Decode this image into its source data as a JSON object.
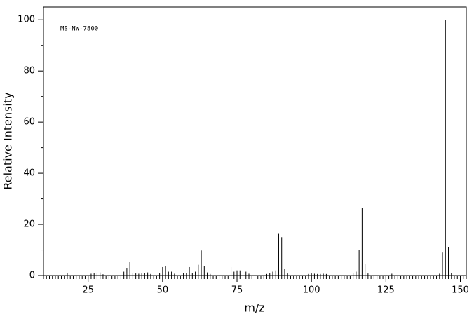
{
  "chart_data": {
    "type": "stem",
    "annotation": "MS-NW-7800",
    "x_label": "m/z",
    "y_label": "Relative Intensity",
    "x": [
      18,
      26,
      27,
      28,
      29,
      30,
      37,
      38,
      39,
      40,
      41,
      42,
      43,
      44,
      45,
      46,
      49,
      50,
      51,
      52,
      53,
      54,
      57,
      58,
      59,
      60,
      61,
      62,
      63,
      64,
      65,
      66,
      73,
      74,
      75,
      76,
      77,
      78,
      79,
      85,
      86,
      87,
      88,
      89,
      90,
      91,
      92,
      99,
      100,
      101,
      102,
      103,
      104,
      105,
      114,
      115,
      116,
      117,
      118,
      119,
      127,
      143,
      144,
      145,
      146,
      147
    ],
    "values": [
      1,
      0.7,
      1,
      1,
      1.2,
      0.5,
      1.5,
      3,
      5.3,
      0.8,
      0.8,
      0.7,
      0.8,
      0.9,
      1.2,
      0.6,
      1,
      3.3,
      3.8,
      1.5,
      1.5,
      0.7,
      1,
      1,
      3.3,
      1,
      1.5,
      4.2,
      9.8,
      3.8,
      1.2,
      0.6,
      3.3,
      1.5,
      2,
      2,
      1.5,
      1.5,
      0.7,
      0.6,
      1,
      1.5,
      2,
      16.3,
      15,
      2.5,
      0.8,
      0.6,
      0.8,
      0.7,
      0.6,
      0.6,
      0.7,
      0.6,
      0.8,
      1.5,
      10,
      26.5,
      4.5,
      0.8,
      0.7,
      0.7,
      9,
      100,
      11,
      1
    ],
    "color": "#000000",
    "xlim": [
      10,
      152
    ],
    "xticks": [
      25,
      50,
      75,
      100,
      125,
      150
    ],
    "ylim": [
      0,
      105
    ],
    "yticks": [
      0,
      20,
      40,
      60,
      80,
      100
    ]
  }
}
